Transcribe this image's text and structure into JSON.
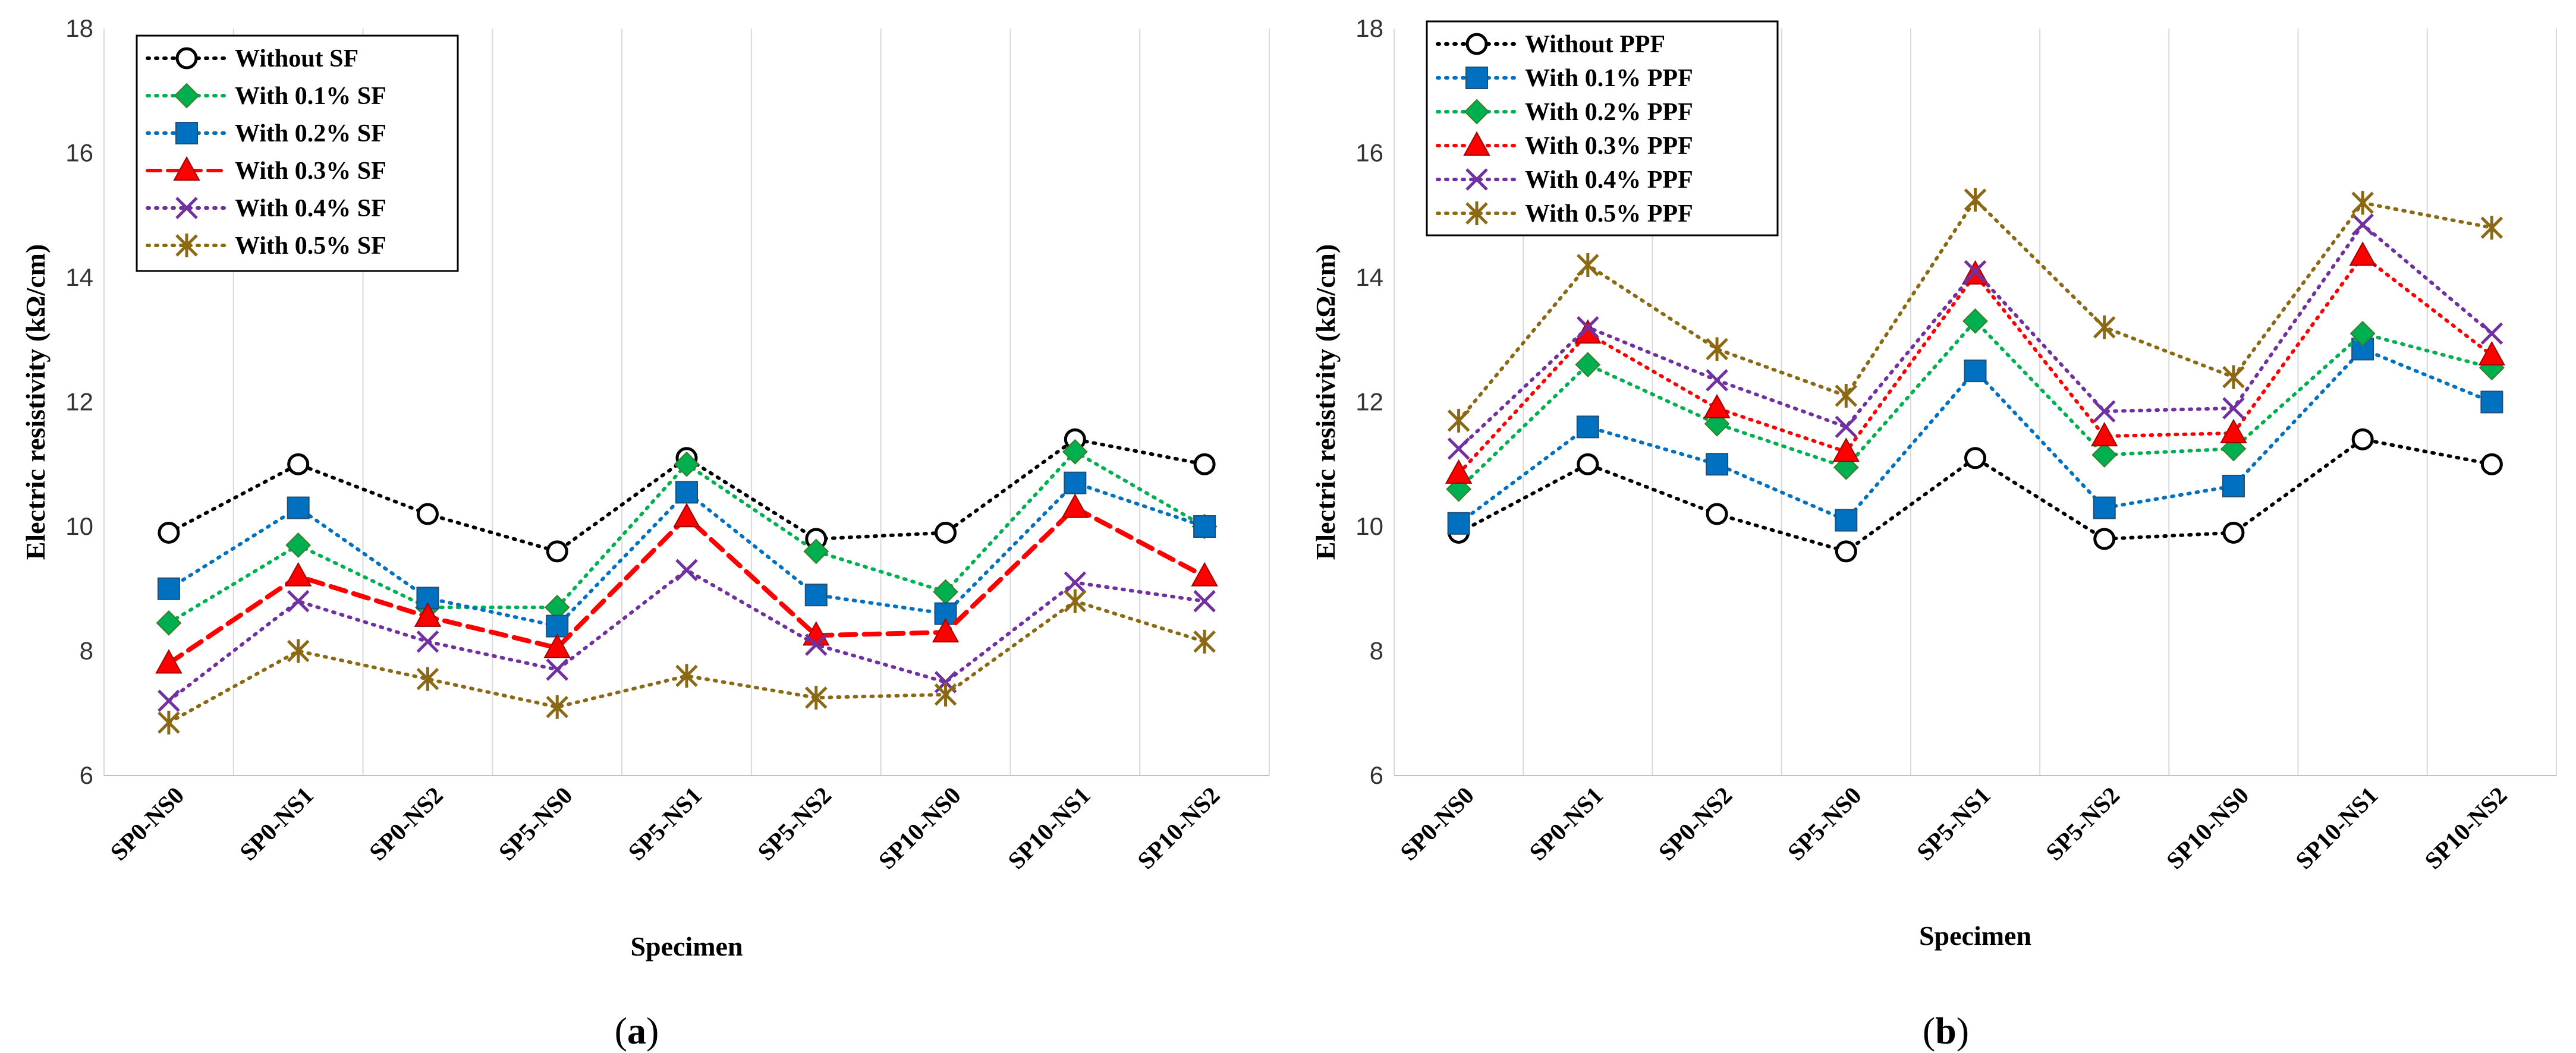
{
  "chart_data": [
    {
      "type": "line",
      "panel": "a",
      "title": "",
      "xlabel": "Specimen",
      "ylabel": "Electric resistivity (kΩ/cm)",
      "ylim": [
        6,
        18
      ],
      "yticks": [
        6,
        8,
        10,
        12,
        14,
        16,
        18
      ],
      "grid": "vertical",
      "legend_position": "top-left",
      "categories": [
        "SP0-NS0",
        "SP0-NS1",
        "SP0-NS2",
        "SP5-NS0",
        "SP5-NS1",
        "SP5-NS2",
        "SP10-NS0",
        "SP10-NS1",
        "SP10-NS2"
      ],
      "series": [
        {
          "name": "Without  SF",
          "color": "#000000",
          "marker": "circle-open",
          "dash": "dotted",
          "values": [
            9.9,
            11.0,
            10.2,
            9.6,
            11.1,
            9.8,
            9.9,
            11.4,
            11.0
          ]
        },
        {
          "name": "With 0.1% SF",
          "color": "#00b050",
          "marker": "diamond",
          "dash": "dotted",
          "values": [
            8.45,
            9.7,
            8.7,
            8.7,
            11.0,
            9.6,
            8.95,
            11.2,
            10.0
          ]
        },
        {
          "name": "With 0.2% SF",
          "color": "#0070c0",
          "marker": "square",
          "dash": "dotted",
          "values": [
            9.0,
            10.3,
            8.85,
            8.4,
            10.55,
            8.9,
            8.6,
            10.7,
            10.0
          ]
        },
        {
          "name": "With 0.3% SF",
          "color": "#ff0000",
          "marker": "triangle",
          "dash": "dashed",
          "values": [
            7.8,
            9.2,
            8.55,
            8.05,
            10.15,
            8.25,
            8.3,
            10.3,
            9.2
          ]
        },
        {
          "name": "With 0.4% SF",
          "color": "#7030a0",
          "marker": "x",
          "dash": "dotted",
          "values": [
            7.2,
            8.8,
            8.15,
            7.7,
            9.3,
            8.1,
            7.5,
            9.1,
            8.8
          ]
        },
        {
          "name": "With 0.5% SF",
          "color": "#8b6914",
          "marker": "star",
          "dash": "dotted",
          "values": [
            6.85,
            8.0,
            7.55,
            7.1,
            7.6,
            7.25,
            7.3,
            8.8,
            8.15
          ]
        }
      ]
    },
    {
      "type": "line",
      "panel": "b",
      "title": "",
      "xlabel": "Specimen",
      "ylabel": "Electric resistivity (kΩ/cm)",
      "ylim": [
        6,
        18
      ],
      "yticks": [
        6,
        8,
        10,
        12,
        14,
        16,
        18
      ],
      "grid": "vertical",
      "legend_position": "top-left",
      "categories": [
        "SP0-NS0",
        "SP0-NS1",
        "SP0-NS2",
        "SP5-NS0",
        "SP5-NS1",
        "SP5-NS2",
        "SP10-NS0",
        "SP10-NS1",
        "SP10-NS2"
      ],
      "series": [
        {
          "name": "Without  PPF",
          "color": "#000000",
          "marker": "circle-open",
          "dash": "dotted",
          "values": [
            9.9,
            11.0,
            10.2,
            9.6,
            11.1,
            9.8,
            9.9,
            11.4,
            11.0
          ]
        },
        {
          "name": "With 0.1% PPF",
          "color": "#0070c0",
          "marker": "square",
          "dash": "dotted",
          "values": [
            10.05,
            11.6,
            11.0,
            10.1,
            12.5,
            10.3,
            10.65,
            12.85,
            12.0
          ]
        },
        {
          "name": "With 0.2% PPF",
          "color": "#00b050",
          "marker": "diamond",
          "dash": "dotted",
          "values": [
            10.6,
            12.6,
            11.65,
            10.95,
            13.3,
            11.15,
            11.25,
            13.1,
            12.55
          ]
        },
        {
          "name": "With 0.3% PPF",
          "color": "#ff0000",
          "marker": "triangle",
          "dash": "dotted",
          "values": [
            10.85,
            13.1,
            11.9,
            11.2,
            14.05,
            11.45,
            11.5,
            14.35,
            12.75
          ]
        },
        {
          "name": "With 0.4% PPF",
          "color": "#7030a0",
          "marker": "x",
          "dash": "dotted",
          "values": [
            11.25,
            13.2,
            12.35,
            11.6,
            14.1,
            11.85,
            11.9,
            14.85,
            13.1
          ]
        },
        {
          "name": "With 0.5% PPF",
          "color": "#8b6914",
          "marker": "star",
          "dash": "dotted",
          "values": [
            11.7,
            14.2,
            12.85,
            12.1,
            15.25,
            13.2,
            12.4,
            15.2,
            14.8
          ]
        }
      ]
    }
  ],
  "panel_labels": [
    {
      "open": "(",
      "letter": "a",
      "close": ")"
    },
    {
      "open": "(",
      "letter": "b",
      "close": ")"
    }
  ]
}
